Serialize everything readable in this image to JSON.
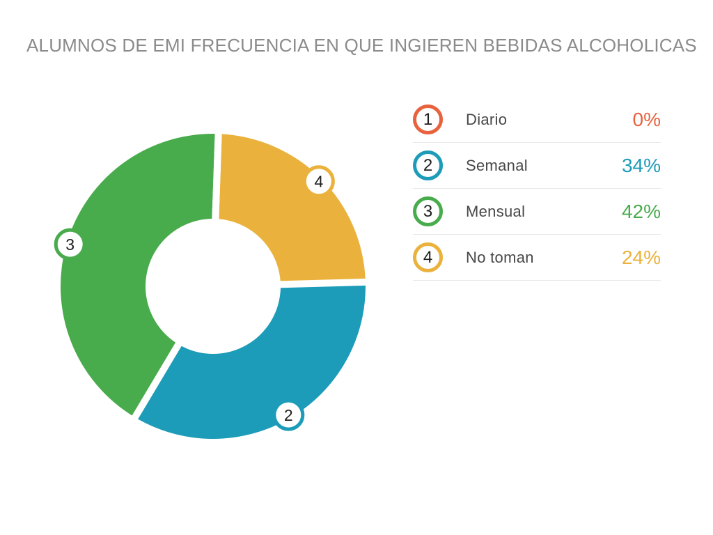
{
  "title": "ALUMNOS DE EMI FRECUENCIA EN QUE INGIEREN BEBIDAS ALCOHOLICAS",
  "colors": {
    "title_text": "#8b8b8b",
    "number_text": "#1e1e1e",
    "label_text": "#474747",
    "diario": "#e8623e",
    "semanal": "#1c9cb8",
    "mensual": "#48ab4c",
    "no_toman": "#eab23c"
  },
  "legend": {
    "items": [
      {
        "number": "1",
        "label": "Diario",
        "value_text": "0%",
        "color": "#e8623e"
      },
      {
        "number": "2",
        "label": "Semanal",
        "value_text": "34%",
        "color": "#1c9cb8"
      },
      {
        "number": "3",
        "label": "Mensual",
        "value_text": "42%",
        "color": "#48ab4c"
      },
      {
        "number": "4",
        "label": "No toman",
        "value_text": "24%",
        "color": "#eab23c"
      }
    ]
  },
  "chart_data": {
    "type": "pie",
    "subtype": "donut",
    "title": "ALUMNOS DE EMI FRECUENCIA EN QUE INGIEREN BEBIDAS ALCOHOLICAS",
    "categories": [
      "Diario",
      "Semanal",
      "Mensual",
      "No toman"
    ],
    "values": [
      0,
      34,
      42,
      24
    ],
    "units": "%",
    "colors": [
      "#e8623e",
      "#1c9cb8",
      "#48ab4c",
      "#eab23c"
    ],
    "badges": [
      "1",
      "2",
      "3",
      "4"
    ],
    "draw_order": [
      0,
      3,
      1,
      2
    ],
    "start_angle_deg": 2,
    "clockwise": true,
    "legend_position": "right",
    "slice_gap": true
  }
}
